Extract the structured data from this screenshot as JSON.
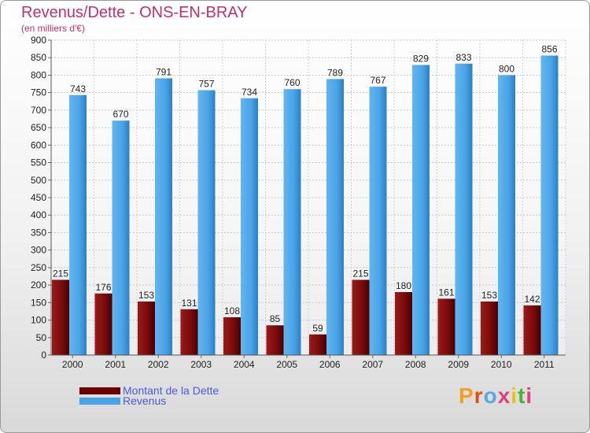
{
  "title": "Revenus/Dette - ONS-EN-BRAY",
  "subtitle": "(en milliers d'€)",
  "colors": {
    "title": "#c0306a",
    "dette": "#8b1414",
    "revenus": "#4aa3e6",
    "legend_text": "#4a5bd8",
    "axis_text": "#222222"
  },
  "legend": [
    {
      "label": "Montant de la Dette",
      "color": "#6b0000"
    },
    {
      "label": "Revenus",
      "color": "#4aa3e6"
    }
  ],
  "logo": {
    "text": "Proxiti",
    "colors": [
      "#f0a020",
      "#e05010",
      "#5aa8e0",
      "#e04080",
      "#f0c010",
      "#50b030",
      "#e04080"
    ]
  },
  "chart_data": {
    "type": "bar",
    "categories": [
      "2000",
      "2001",
      "2002",
      "2003",
      "2004",
      "2005",
      "2006",
      "2007",
      "2008",
      "2009",
      "2010",
      "2011"
    ],
    "series": [
      {
        "name": "Montant de la Dette",
        "values": [
          215,
          176,
          153,
          131,
          108,
          85,
          59,
          215,
          180,
          161,
          153,
          142
        ]
      },
      {
        "name": "Revenus",
        "values": [
          743,
          670,
          791,
          757,
          734,
          760,
          789,
          767,
          829,
          833,
          800,
          856
        ]
      }
    ],
    "ylim": [
      0,
      900
    ],
    "yticks": [
      0,
      50,
      100,
      150,
      200,
      250,
      300,
      350,
      400,
      450,
      500,
      550,
      600,
      650,
      700,
      750,
      800,
      850,
      900
    ],
    "grid": true,
    "legend_position": "bottom-left"
  }
}
